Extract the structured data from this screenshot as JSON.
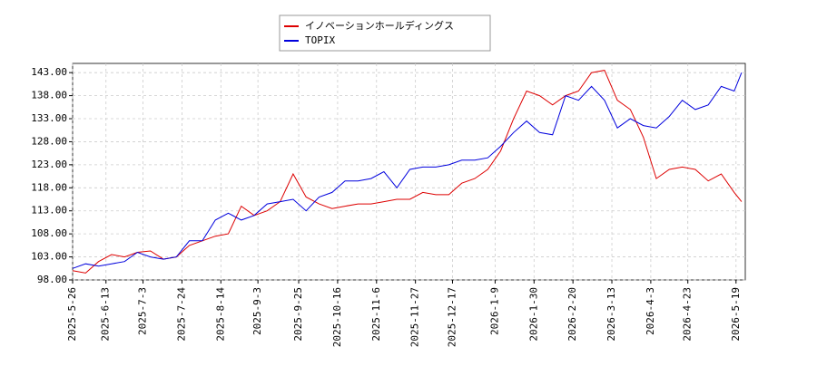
{
  "chart_data": {
    "type": "line",
    "x": [
      "2025-5-26",
      "2025-6-2",
      "2025-6-9",
      "2025-6-16",
      "2025-6-23",
      "2025-6-30",
      "2025-7-7",
      "2025-7-14",
      "2025-7-21",
      "2025-7-28",
      "2025-8-4",
      "2025-8-11",
      "2025-8-18",
      "2025-8-25",
      "2025-9-1",
      "2025-9-8",
      "2025-9-15",
      "2025-9-22",
      "2025-9-29",
      "2025-10-6",
      "2025-10-13",
      "2025-10-20",
      "2025-10-27",
      "2025-11-3",
      "2025-11-10",
      "2025-11-17",
      "2025-11-24",
      "2025-12-1",
      "2025-12-8",
      "2025-12-15",
      "2025-12-22",
      "2025-12-29",
      "2026-1-5",
      "2026-1-12",
      "2026-1-19",
      "2026-1-26",
      "2026-2-2",
      "2026-2-9",
      "2026-2-16",
      "2026-2-23",
      "2026-3-2",
      "2026-3-9",
      "2026-3-16",
      "2026-3-23",
      "2026-3-30",
      "2026-4-6",
      "2026-4-13",
      "2026-4-20",
      "2026-4-27",
      "2026-5-4",
      "2026-5-11",
      "2026-5-18",
      "2026-5-22"
    ],
    "series": [
      {
        "name": "イノベーションホールディングス",
        "color": "#dd0000",
        "values": [
          100,
          99.5,
          102,
          103.5,
          103,
          104,
          104.3,
          102.5,
          103,
          105.5,
          106.5,
          107.5,
          108,
          114,
          112,
          113,
          115,
          121,
          116,
          114.5,
          113.5,
          114,
          114.5,
          114.5,
          115,
          115.5,
          115.5,
          117,
          116.5,
          116.5,
          119,
          120,
          122,
          126,
          133,
          139,
          138,
          136,
          138,
          139,
          143,
          143.5,
          137,
          135,
          129,
          120,
          122,
          122.5,
          122,
          119.5,
          121,
          117,
          115
        ]
      },
      {
        "name": "TOPIX",
        "color": "#0000dd",
        "values": [
          100.5,
          101.5,
          101,
          101.5,
          102,
          104,
          103,
          102.5,
          103,
          106.5,
          106.5,
          111,
          112.5,
          111,
          112,
          114.5,
          115,
          115.5,
          113,
          116,
          117,
          119.5,
          119.5,
          120,
          121.5,
          118,
          122,
          122.5,
          122.5,
          123,
          124,
          124,
          124.5,
          127,
          130,
          132.5,
          130,
          129.5,
          138,
          137,
          140,
          137,
          131,
          133,
          131.5,
          131,
          133.5,
          137,
          135,
          136,
          140,
          139,
          143
        ]
      }
    ],
    "xlim": [
      "2025-5-26",
      "2026-5-24"
    ],
    "xticks": [
      "2025-5-26",
      "2025-6-13",
      "2025-7-3",
      "2025-7-24",
      "2025-8-14",
      "2025-9-3",
      "2025-9-25",
      "2025-10-16",
      "2025-11-6",
      "2025-11-27",
      "2025-12-17",
      "2026-1-9",
      "2026-1-30",
      "2026-2-20",
      "2026-3-13",
      "2026-4-3",
      "2026-4-23",
      "2026-5-19"
    ],
    "ylim": [
      98,
      145
    ],
    "yticks": [
      {
        "value": 98,
        "label": "98.00"
      },
      {
        "value": 103,
        "label": "103.00"
      },
      {
        "value": 108,
        "label": "108.00"
      },
      {
        "value": 113,
        "label": "113.00"
      },
      {
        "value": 118,
        "label": "118.00"
      },
      {
        "value": 123,
        "label": "123.00"
      },
      {
        "value": 128,
        "label": "128.00"
      },
      {
        "value": 133,
        "label": "133.00"
      },
      {
        "value": 138,
        "label": "138.00"
      },
      {
        "value": 143,
        "label": "143.00"
      }
    ],
    "grid": true
  }
}
